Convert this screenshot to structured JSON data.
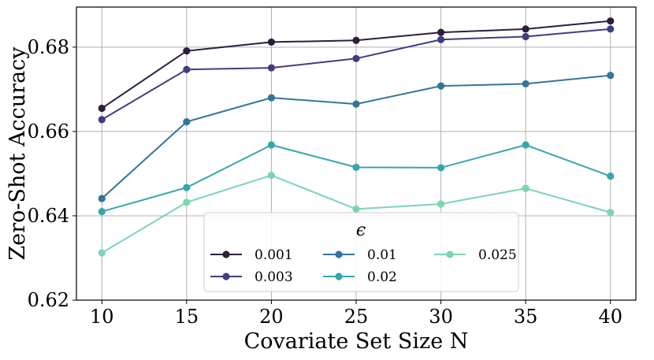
{
  "chart_data": {
    "type": "line",
    "title": "",
    "xlabel": "Covariate Set Size N",
    "ylabel": "Zero-Shot Accuracy",
    "x": [
      10,
      15,
      20,
      25,
      30,
      35,
      40
    ],
    "xticks": [
      "10",
      "15",
      "20",
      "25",
      "30",
      "35",
      "40"
    ],
    "yticks": [
      "0.62",
      "0.64",
      "0.66",
      "0.68"
    ],
    "xlim": [
      8.5,
      41.5
    ],
    "ylim": [
      0.62,
      0.6895
    ],
    "grid": true,
    "legend": {
      "title": "ϵ",
      "placement": "bottom-center",
      "columns": 3
    },
    "series": [
      {
        "name": "0.001",
        "color": "#2d1e3e",
        "values": [
          0.6655,
          0.6791,
          0.6812,
          0.6816,
          0.6835,
          0.6843,
          0.6862
        ]
      },
      {
        "name": "0.003",
        "color": "#403e7f",
        "values": [
          0.6628,
          0.6747,
          0.6751,
          0.6773,
          0.6818,
          0.6825,
          0.6843
        ]
      },
      {
        "name": "0.01",
        "color": "#34749a",
        "values": [
          0.6441,
          0.6623,
          0.668,
          0.6665,
          0.6708,
          0.6713,
          0.6733
        ]
      },
      {
        "name": "0.02",
        "color": "#35a6ad",
        "values": [
          0.641,
          0.6467,
          0.6568,
          0.6515,
          0.6514,
          0.6568,
          0.6494
        ]
      },
      {
        "name": "0.025",
        "color": "#79d6ad",
        "values": [
          0.6312,
          0.6432,
          0.6496,
          0.6416,
          0.6428,
          0.6465,
          0.6408
        ]
      }
    ]
  }
}
